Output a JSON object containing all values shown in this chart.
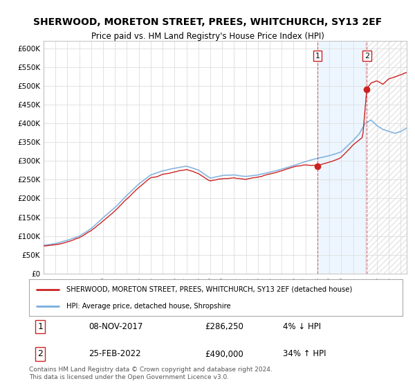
{
  "title": "SHERWOOD, MORETON STREET, PREES, WHITCHURCH, SY13 2EF",
  "subtitle": "Price paid vs. HM Land Registry's House Price Index (HPI)",
  "legend_line1": "SHERWOOD, MORETON STREET, PREES, WHITCHURCH, SY13 2EF (detached house)",
  "legend_line2": "HPI: Average price, detached house, Shropshire",
  "footnote": "Contains HM Land Registry data © Crown copyright and database right 2024.\nThis data is licensed under the Open Government Licence v3.0.",
  "sale1_label": "1",
  "sale1_date": "08-NOV-2017",
  "sale1_price": "£286,250",
  "sale1_hpi": "4% ↓ HPI",
  "sale2_label": "2",
  "sale2_date": "25-FEB-2022",
  "sale2_price": "£490,000",
  "sale2_hpi": "34% ↑ HPI",
  "sale1_year": 2018.0,
  "sale2_year": 2022.15,
  "sale1_value": 286250,
  "sale2_value": 490000,
  "hpi_color": "#7aaddc",
  "price_color": "#cc2222",
  "sale_marker_color": "#cc2222",
  "vline_color": "#cc2222",
  "background_plot": "#f5f5f5",
  "background_shade": "#ddeeff",
  "ylim": [
    0,
    620000
  ],
  "xlim_start": 1995,
  "xlim_end": 2025.5
}
